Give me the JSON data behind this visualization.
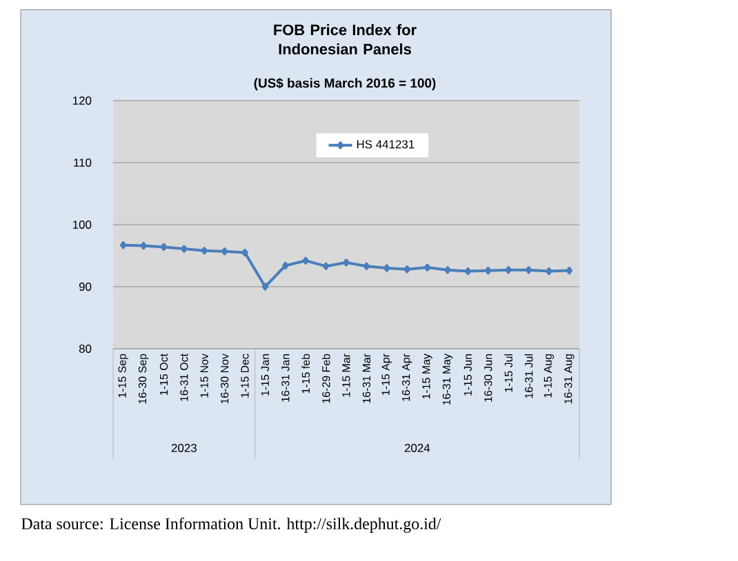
{
  "chart_data": {
    "type": "line",
    "title": "FOB Price Index for Indonesian Panels",
    "subtitle": "(US$ basis March 2016 = 100)",
    "categories": [
      "1-15 Sep",
      "16-30 Sep",
      "1-15 Oct",
      "16-31 Oct",
      "1-15 Nov",
      "16-30 Nov",
      "1-15 Dec",
      "1-15 Jan",
      "16-31 Jan",
      "1-15 feb",
      "16-29 Feb",
      "1-15 Mar",
      "16-31 Mar",
      "1-15 Apr",
      "16-31 Apr",
      "1-15 May",
      "16-31 May",
      "1-15 Jun",
      "16-30 Jun",
      "1-15 Jul",
      "16-31 Jul",
      "1-15 Aug",
      "16-31 Aug"
    ],
    "series": [
      {
        "name": "HS 441231",
        "color": "#4a7ebb",
        "values": [
          96.7,
          96.6,
          96.4,
          96.1,
          95.8,
          95.7,
          95.5,
          90.0,
          93.4,
          94.2,
          93.3,
          93.9,
          93.3,
          93.0,
          92.8,
          93.1,
          92.7,
          92.5,
          92.6,
          92.7,
          92.7,
          92.5,
          92.6
        ]
      }
    ],
    "ylim": [
      80,
      120
    ],
    "yticks": [
      80,
      90,
      100,
      110,
      120
    ],
    "grid": "y",
    "legend": "top",
    "marker": "diamond",
    "line_style": "solid",
    "annotations": [
      "2023",
      "2024",
      "Data source: License Information Unit. http://silk.dephut.go.id/"
    ]
  }
}
